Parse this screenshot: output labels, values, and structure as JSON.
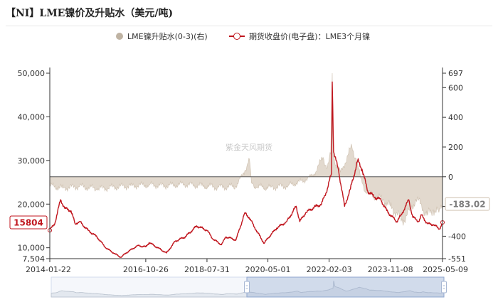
{
  "title": "【NI】LME镍价及升贴水（美元/吨)",
  "watermark": "紫金天风期货",
  "colors": {
    "price": "#c0161e",
    "spread": "#cdbfae",
    "spread_fill": "#d8ccbe"
  },
  "chart_data": {
    "type": "line",
    "series": [
      {
        "name": "LME镍升贴水(0-3)(右)",
        "axis": "right",
        "style": "area",
        "points": [
          [
            "2014-01-22",
            -60
          ],
          [
            "2014-06-01",
            -75
          ],
          [
            "2014-12-01",
            -65
          ],
          [
            "2015-06-01",
            -80
          ],
          [
            "2015-12-01",
            -70
          ],
          [
            "2016-06-01",
            -60
          ],
          [
            "2016-12-01",
            -55
          ],
          [
            "2017-06-01",
            -60
          ],
          [
            "2017-12-01",
            -50
          ],
          [
            "2018-06-01",
            -60
          ],
          [
            "2018-12-01",
            -70
          ],
          [
            "2019-06-01",
            -65
          ],
          [
            "2019-09-01",
            40
          ],
          [
            "2019-10-20",
            120
          ],
          [
            "2019-11-10",
            -40
          ],
          [
            "2020-01-01",
            -70
          ],
          [
            "2020-06-01",
            -70
          ],
          [
            "2020-12-01",
            -60
          ],
          [
            "2021-06-01",
            -20
          ],
          [
            "2021-09-01",
            20
          ],
          [
            "2021-12-01",
            130
          ],
          [
            "2022-01-15",
            60
          ],
          [
            "2022-02-20",
            150
          ],
          [
            "2022-03-08",
            697
          ],
          [
            "2022-03-12",
            300
          ],
          [
            "2022-04-01",
            100
          ],
          [
            "2022-06-01",
            30
          ],
          [
            "2022-10-01",
            200
          ],
          [
            "2022-11-15",
            120
          ],
          [
            "2023-01-01",
            -10
          ],
          [
            "2023-03-01",
            -110
          ],
          [
            "2023-06-01",
            -130
          ],
          [
            "2023-09-01",
            -160
          ],
          [
            "2023-11-08",
            -200
          ],
          [
            "2024-01-15",
            -240
          ],
          [
            "2024-03-01",
            -300
          ],
          [
            "2024-06-01",
            -230
          ],
          [
            "2024-08-01",
            -150
          ],
          [
            "2024-10-01",
            -190
          ],
          [
            "2024-12-01",
            -260
          ],
          [
            "2025-02-01",
            -220
          ],
          [
            "2025-04-01",
            -240
          ],
          [
            "2025-05-09",
            -183.02
          ]
        ]
      },
      {
        "name": "期货收盘价(电子盘)：LME3个月镍",
        "axis": "left",
        "style": "line",
        "points": [
          [
            "2014-01-22",
            14000
          ],
          [
            "2014-03-15",
            15500
          ],
          [
            "2014-05-15",
            21000
          ],
          [
            "2014-07-01",
            19000
          ],
          [
            "2014-09-01",
            18500
          ],
          [
            "2014-10-15",
            15500
          ],
          [
            "2014-12-01",
            16000
          ],
          [
            "2015-03-01",
            14000
          ],
          [
            "2015-06-01",
            12500
          ],
          [
            "2015-09-01",
            10000
          ],
          [
            "2015-12-15",
            8500
          ],
          [
            "2016-02-10",
            7800
          ],
          [
            "2016-04-01",
            8800
          ],
          [
            "2016-08-01",
            10500
          ],
          [
            "2016-10-26",
            10200
          ],
          [
            "2016-12-01",
            11200
          ],
          [
            "2017-03-01",
            10000
          ],
          [
            "2017-06-01",
            8800
          ],
          [
            "2017-09-01",
            11500
          ],
          [
            "2017-12-15",
            12500
          ],
          [
            "2018-02-01",
            13500
          ],
          [
            "2018-04-15",
            15000
          ],
          [
            "2018-07-31",
            14000
          ],
          [
            "2018-10-01",
            12000
          ],
          [
            "2018-12-31",
            10700
          ],
          [
            "2019-02-15",
            12500
          ],
          [
            "2019-06-01",
            11800
          ],
          [
            "2019-09-01",
            18000
          ],
          [
            "2019-10-15",
            17000
          ],
          [
            "2019-12-31",
            14000
          ],
          [
            "2020-03-23",
            11000
          ],
          [
            "2020-05-01",
            12200
          ],
          [
            "2020-08-01",
            14500
          ],
          [
            "2020-11-15",
            16000
          ],
          [
            "2021-02-22",
            19500
          ],
          [
            "2021-04-01",
            16000
          ],
          [
            "2021-06-01",
            18000
          ],
          [
            "2021-09-15",
            19500
          ],
          [
            "2021-11-15",
            20000
          ],
          [
            "2022-01-15",
            23500
          ],
          [
            "2022-02-28",
            27000
          ],
          [
            "2022-03-08",
            48000
          ],
          [
            "2022-03-22",
            32000
          ],
          [
            "2022-05-15",
            27500
          ],
          [
            "2022-07-15",
            19500
          ],
          [
            "2022-09-15",
            23500
          ],
          [
            "2022-11-30",
            30000
          ],
          [
            "2023-01-15",
            28000
          ],
          [
            "2023-03-15",
            23000
          ],
          [
            "2023-06-01",
            21500
          ],
          [
            "2023-08-01",
            21000
          ],
          [
            "2023-10-01",
            18500
          ],
          [
            "2023-11-08",
            17500
          ],
          [
            "2024-01-15",
            16000
          ],
          [
            "2024-03-01",
            17500
          ],
          [
            "2024-05-20",
            21000
          ],
          [
            "2024-07-01",
            17000
          ],
          [
            "2024-09-01",
            16000
          ],
          [
            "2024-10-01",
            17500
          ],
          [
            "2024-12-01",
            15500
          ],
          [
            "2025-02-01",
            15300
          ],
          [
            "2025-04-10",
            14300
          ],
          [
            "2025-05-09",
            15804
          ]
        ]
      }
    ],
    "x_axis": {
      "type": "date",
      "range": [
        "2014-01-22",
        "2025-05-09"
      ],
      "tick_labels": [
        "2014-01-22",
        "2016-10-26",
        "2018-07-31",
        "2020-05-01",
        "2022-02-03",
        "2023-11-08",
        "2025-05-09"
      ]
    },
    "y_left": {
      "range": [
        7504,
        50000
      ],
      "tick_labels": [
        "7,504",
        "10,000",
        "20,000",
        "30,000",
        "40,000",
        "50,000"
      ],
      "tick_values": [
        7504,
        10000,
        20000,
        30000,
        40000,
        50000
      ]
    },
    "y_right": {
      "range": [
        -551,
        697
      ],
      "tick_labels": [
        "-551",
        "-400",
        "-200",
        "0",
        "200",
        "400",
        "600",
        "697"
      ],
      "tick_values": [
        -551,
        -400,
        -200,
        0,
        200,
        400,
        600,
        697
      ]
    },
    "latest": {
      "price_label": "15804",
      "spread_label": "-183.02"
    },
    "legend_position": "top-center",
    "grid": false
  }
}
